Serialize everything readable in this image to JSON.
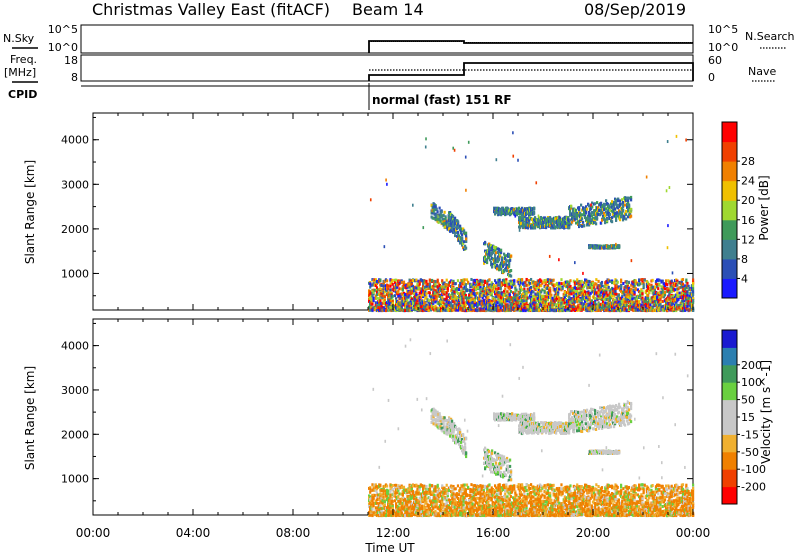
{
  "header": {
    "title": "Christmas Valley East (fitACF)",
    "beam": "Beam 14",
    "date": "08/Sep/2019"
  },
  "params": {
    "nsky_label": "N.Sky",
    "nsearch_label": "N.Search",
    "freq_label_1": "Freq.",
    "freq_label_2": "[MHz]",
    "nave_label": "Nave",
    "cpid_label": "CPID",
    "noise_ticks": [
      "10^5",
      "10^0"
    ],
    "noise_ticks_right": [
      "10^5",
      "10^0"
    ],
    "freq_ticks": [
      "18",
      "8"
    ],
    "nave_ticks": [
      "60",
      "0"
    ],
    "cpid_text": "normal (fast) 151 RF"
  },
  "colors": {
    "power": [
      "#1a1aff",
      "#2b4fb6",
      "#3f7f8f",
      "#3f9a5a",
      "#9fd830",
      "#f0c000",
      "#f08000",
      "#f04000",
      "#ff0000"
    ],
    "velocity": [
      "#ff0000",
      "#f04000",
      "#f08000",
      "#f0b030",
      "#c8c8c8",
      "#c8c8c8",
      "#6ad040",
      "#3f9a5a",
      "#2b7fb0",
      "#1a1ad0"
    ]
  },
  "chart_data": [
    {
      "type": "heatmap",
      "name": "power",
      "ylabel": "Slant Range [km]",
      "yticks": [
        "1000",
        "2000",
        "3000",
        "4000"
      ],
      "colorbar_label": "Power [dB]",
      "colorbar_ticks": [
        "4",
        "8",
        "12",
        "16",
        "20",
        "24",
        "28"
      ],
      "data_start_ut": "11:00"
    },
    {
      "type": "heatmap",
      "name": "velocity",
      "ylabel": "Slant Range [km]",
      "yticks": [
        "1000",
        "2000",
        "3000",
        "4000"
      ],
      "colorbar_label": "Velocity [m s^-1]",
      "colorbar_ticks": [
        "-200",
        "-100",
        "-50",
        "-15",
        "15",
        "50",
        "100",
        "200"
      ],
      "data_start_ut": "11:00"
    }
  ],
  "xaxis": {
    "label": "Time UT",
    "ticks": [
      "00:00",
      "04:00",
      "08:00",
      "12:00",
      "16:00",
      "20:00",
      "00:00"
    ]
  }
}
